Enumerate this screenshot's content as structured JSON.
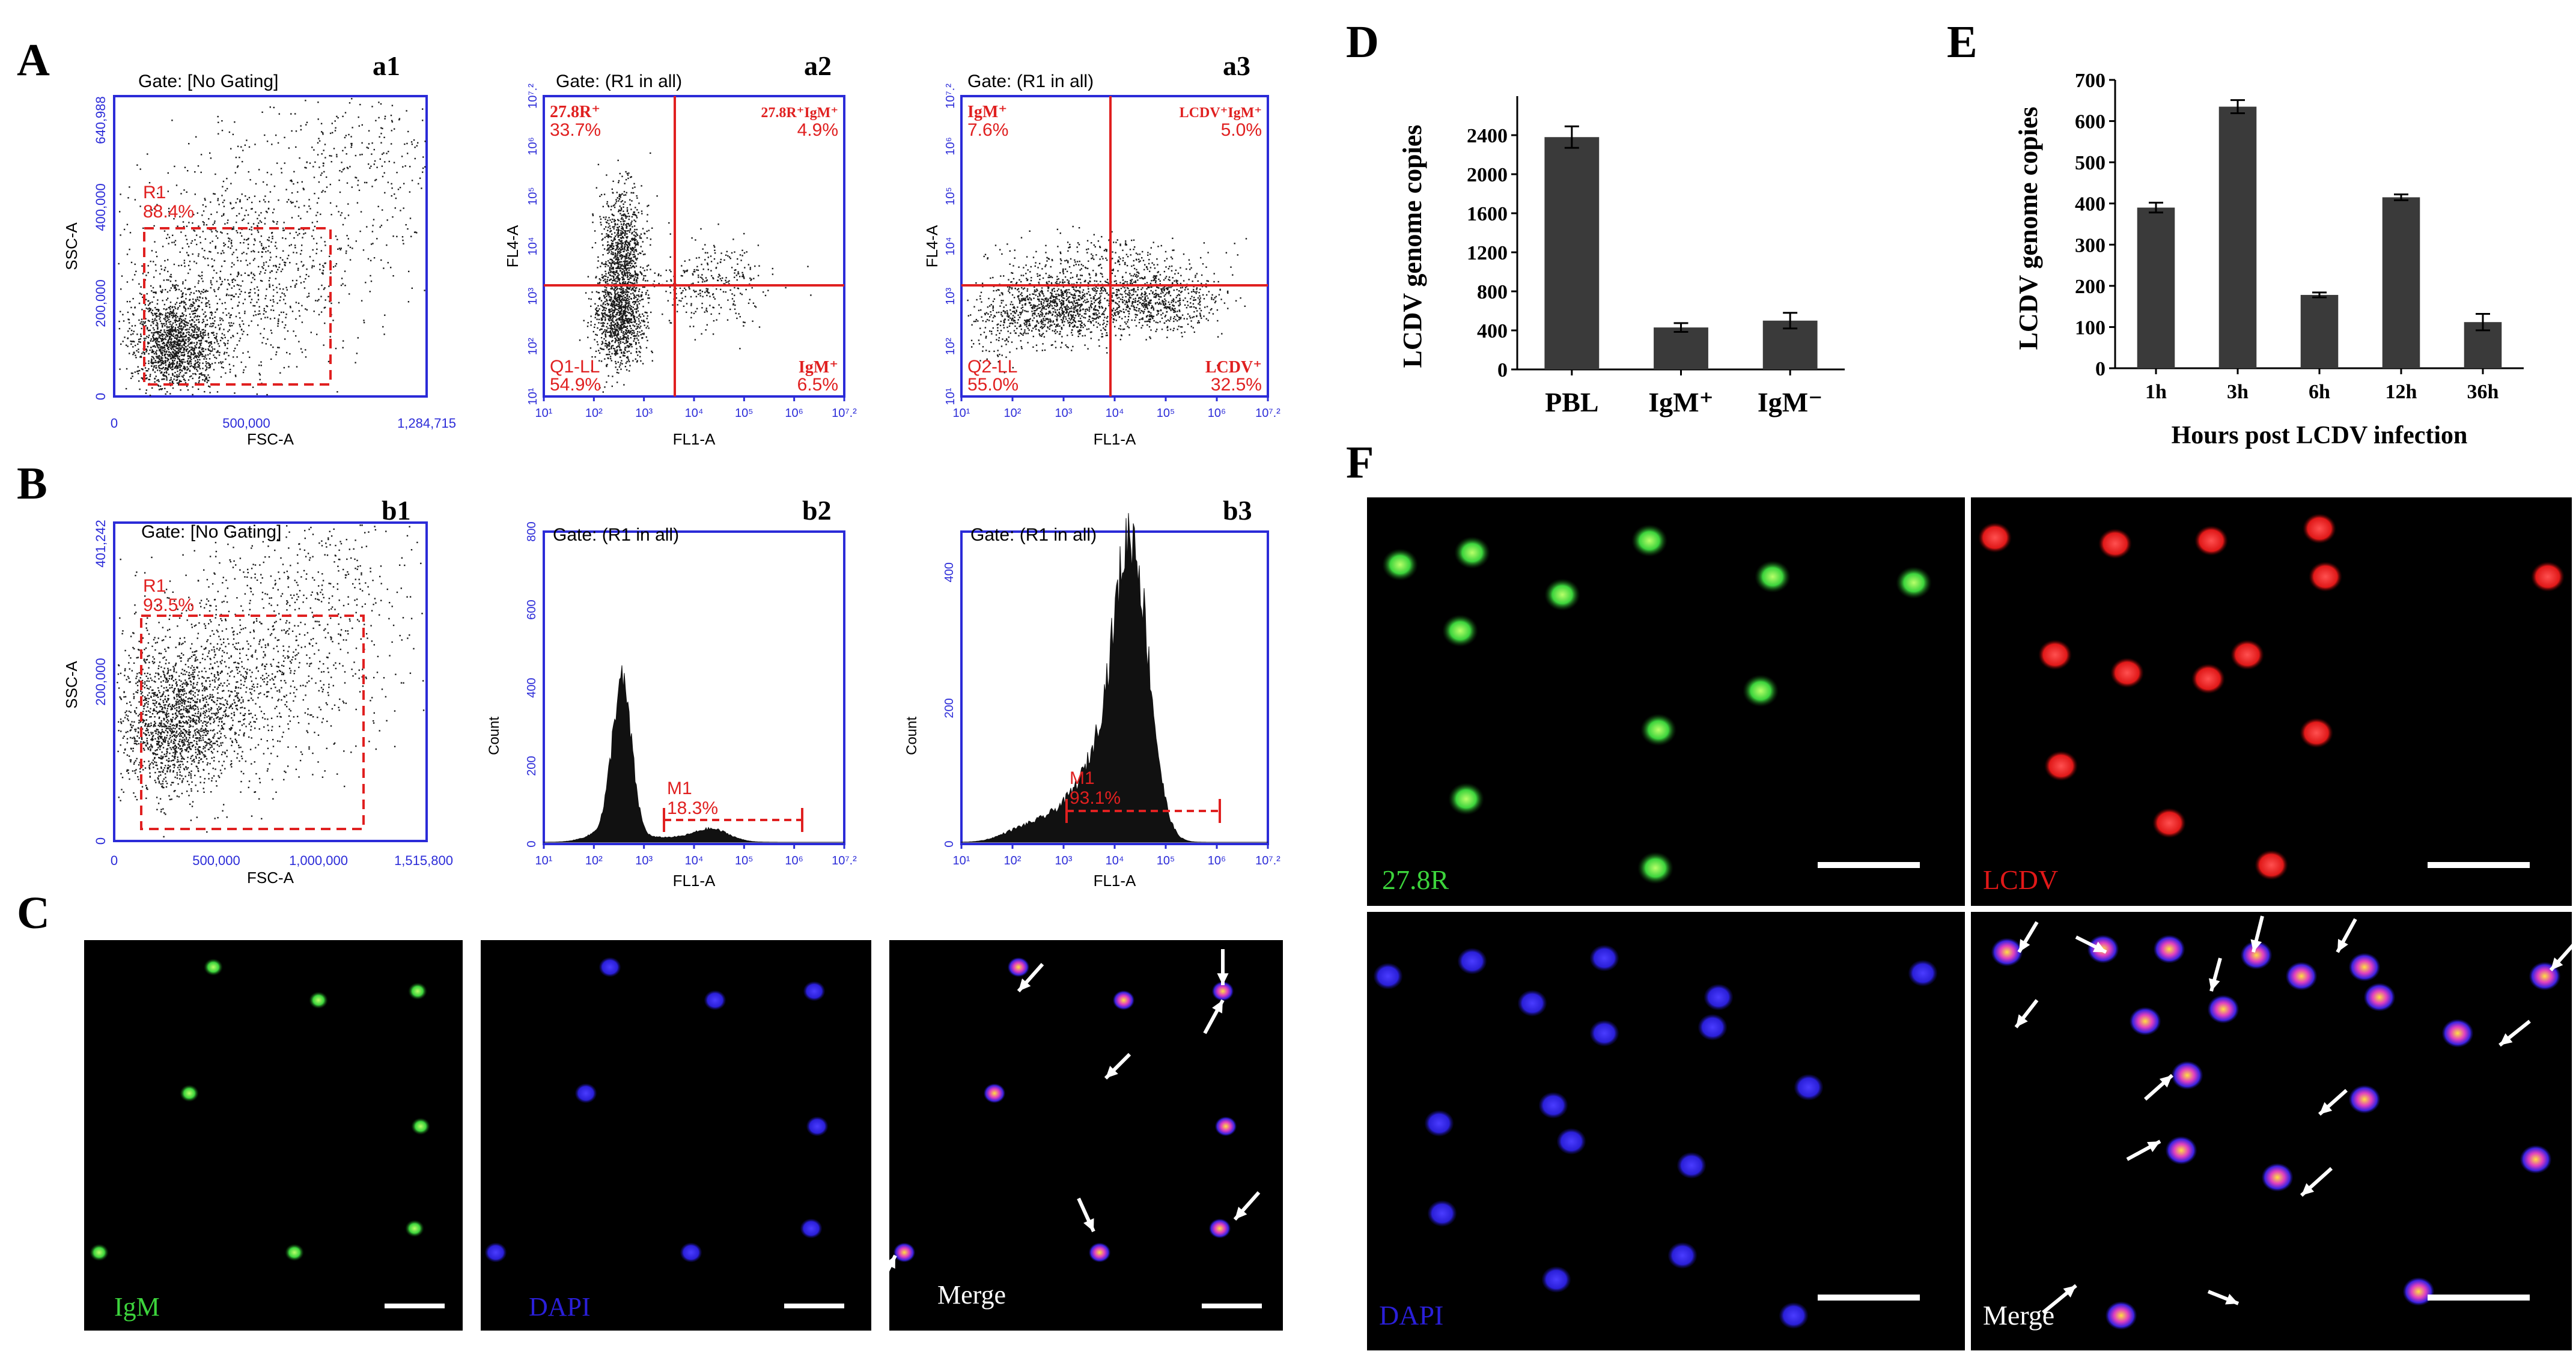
{
  "colors": {
    "axis_blue": "#2b2bd8",
    "gate_red": "#e02020",
    "bar_dark": "#3a3a3a",
    "green": "#3cd43c",
    "red": "#e01818",
    "blue": "#2a1fd8"
  },
  "panels": {
    "A": "A",
    "B": "B",
    "C": "C",
    "D": "D",
    "E": "E",
    "F": "F"
  },
  "flow": {
    "a1": {
      "label": "a1",
      "gate": "Gate: [No Gating]",
      "region": "R1",
      "region_pct": "88.4%",
      "xlabel": "FSC-A",
      "ylabel": "SSC-A",
      "xticks": [
        "0",
        "500,000",
        "1,284,715"
      ],
      "yticks": [
        "0",
        "200,000",
        "400,000",
        "640,988"
      ]
    },
    "a2": {
      "label": "a2",
      "gate": "Gate: (R1 in all)",
      "xlabel": "FL1-A",
      "ylabel": "FL4-A",
      "ul_name": "27.8R⁺",
      "ul_pct": "33.7%",
      "ur_name": "27.8R⁺IgM⁺",
      "ur_pct": "4.9%",
      "ll_name": "Q1-LL",
      "ll_pct": "54.9%",
      "lr_name": "IgM⁺",
      "lr_pct": "6.5%",
      "log_ticks": [
        "10¹",
        "10²",
        "10³",
        "10⁴",
        "10⁵",
        "10⁶",
        "10⁷.²"
      ]
    },
    "a3": {
      "label": "a3",
      "gate": "Gate: (R1 in all)",
      "xlabel": "FL1-A",
      "ylabel": "FL4-A",
      "ul_name": "IgM⁺",
      "ul_pct": "7.6%",
      "ur_name": "LCDV⁺IgM⁺",
      "ur_pct": "5.0%",
      "ll_name": "Q2-LL",
      "ll_pct": "55.0%",
      "lr_name": "LCDV⁺",
      "lr_pct": "32.5%",
      "log_ticks": [
        "10¹",
        "10²",
        "10³",
        "10⁴",
        "10⁵",
        "10⁶",
        "10⁷.²"
      ]
    },
    "b1": {
      "label": "b1",
      "gate": "Gate: [No Gating]",
      "region": "R1",
      "region_pct": "93.5%",
      "xlabel": "FSC-A",
      "ylabel": "SSC-A",
      "xticks": [
        "0",
        "500,000",
        "1,000,000",
        "1,515,800"
      ],
      "yticks": [
        "0",
        "200,000",
        "401,242"
      ]
    },
    "b2": {
      "label": "b2",
      "gate": "Gate: (R1 in all)",
      "marker": "M1",
      "marker_pct": "18.3%",
      "xlabel": "FL1-A",
      "ylabel": "Count",
      "yticks": [
        "0",
        "200",
        "400",
        "600",
        "800"
      ],
      "log_ticks": [
        "10¹",
        "10²",
        "10³",
        "10⁴",
        "10⁵",
        "10⁶",
        "10⁷.²"
      ]
    },
    "b3": {
      "label": "b3",
      "gate": "Gate: (R1 in all)",
      "marker": "M1",
      "marker_pct": "93.1%",
      "xlabel": "FL1-A",
      "ylabel": "Count",
      "yticks": [
        "0",
        "200",
        "400"
      ],
      "log_ticks": [
        "10¹",
        "10²",
        "10³",
        "10⁴",
        "10⁵",
        "10⁶",
        "10⁷.²"
      ]
    }
  },
  "micro": {
    "c_labels": [
      "IgM",
      "DAPI",
      "Merge"
    ],
    "f_labels": [
      "27.8R",
      "LCDV",
      "DAPI",
      "Merge"
    ]
  },
  "chart_data": [
    {
      "id": "D",
      "type": "bar",
      "title": "",
      "xlabel": "",
      "ylabel": "LCDV genome copies",
      "categories": [
        "PBL",
        "IgM⁺",
        "IgM⁻"
      ],
      "values": [
        2380,
        430,
        500
      ],
      "errors": [
        110,
        45,
        80
      ],
      "ylim": [
        0,
        2800
      ],
      "yticks": [
        "0",
        "400",
        "800",
        "1200",
        "1600",
        "2000",
        "2400"
      ]
    },
    {
      "id": "E",
      "type": "bar",
      "title": "",
      "xlabel": "Hours post LCDV infection",
      "ylabel": "LCDV genome copies",
      "categories": [
        "1h",
        "3h",
        "6h",
        "12h",
        "36h"
      ],
      "values": [
        390,
        635,
        178,
        415,
        112
      ],
      "errors": [
        12,
        16,
        6,
        7,
        20
      ],
      "ylim": [
        0,
        700
      ],
      "yticks": [
        "0",
        "100",
        "200",
        "300",
        "400",
        "500",
        "600",
        "700"
      ]
    }
  ]
}
